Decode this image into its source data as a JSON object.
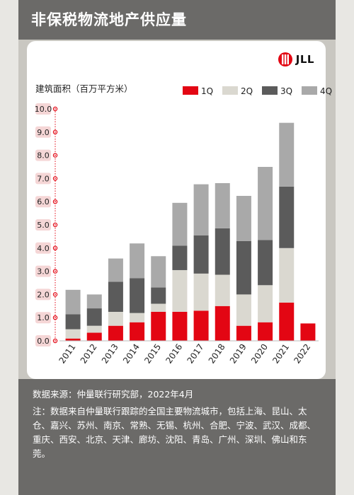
{
  "title": "非保税物流地产供应量",
  "logo_text": "JLL",
  "chart_data": {
    "type": "bar",
    "stacked": true,
    "ylabel": "建筑面积（百万平方米）",
    "ylim": [
      0,
      10
    ],
    "yticks": [
      "0.0",
      "1.0",
      "2.0",
      "3.0",
      "4.0",
      "5.0",
      "6.0",
      "7.0",
      "8.0",
      "9.0",
      "10.0"
    ],
    "categories": [
      "2011",
      "2012",
      "2013",
      "2014",
      "2015",
      "2016",
      "2017",
      "2018",
      "2019",
      "2020",
      "2021",
      "2022"
    ],
    "series": [
      {
        "name": "1Q",
        "color": "#e30613",
        "values": [
          0.1,
          0.35,
          0.65,
          0.8,
          1.25,
          1.25,
          1.3,
          1.5,
          0.65,
          0.8,
          1.65,
          0.75
        ]
      },
      {
        "name": "2Q",
        "color": "#dad8d0",
        "values": [
          0.4,
          0.3,
          0.6,
          0.4,
          0.35,
          1.8,
          1.6,
          1.35,
          1.35,
          1.6,
          2.35,
          0
        ]
      },
      {
        "name": "3Q",
        "color": "#5b5b5b",
        "values": [
          0.65,
          0.75,
          1.3,
          1.5,
          0.7,
          1.05,
          1.65,
          2.0,
          2.3,
          1.95,
          2.65,
          0
        ]
      },
      {
        "name": "4Q",
        "color": "#a9a9a9",
        "values": [
          1.05,
          0.6,
          1.0,
          1.5,
          1.35,
          1.85,
          2.2,
          1.95,
          1.95,
          3.15,
          2.75,
          0
        ]
      }
    ],
    "legend_position": "top-right",
    "grid": false
  },
  "footer": {
    "source": "数据来源：仲量联行研究部，2022年4月",
    "note": "注：数据来自仲量联行跟踪的全国主要物流城市，包括上海、昆山、太仓、嘉兴、苏州、南京、常熟、无锡、杭州、合肥、宁波、武汉、成都、重庆、西安、北京、天津、廊坊、沈阳、青岛、广州、深圳、佛山和东莞。"
  }
}
